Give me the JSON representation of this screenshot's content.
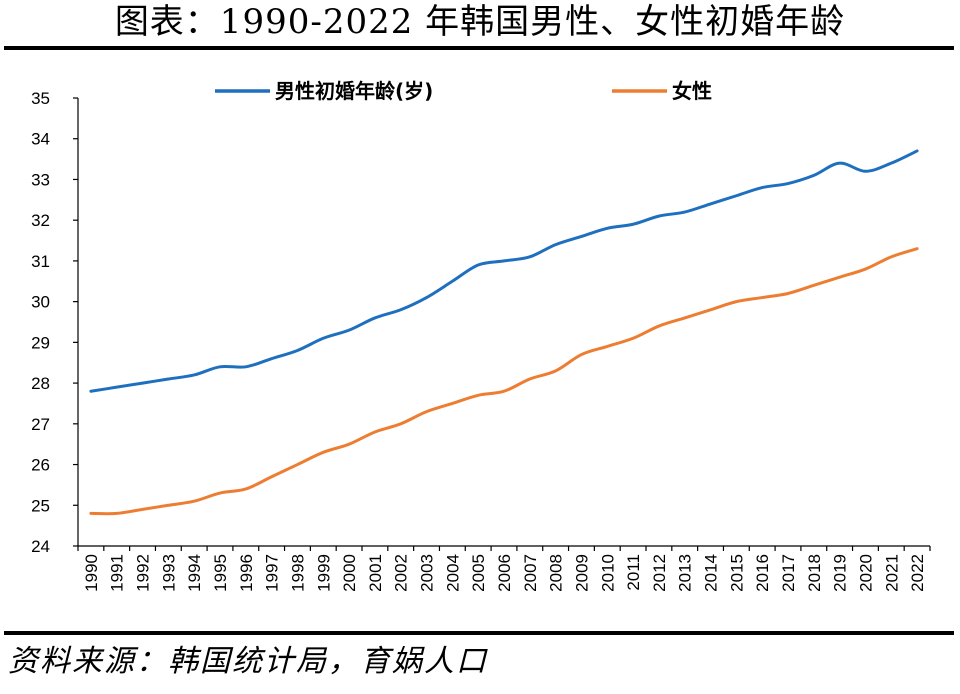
{
  "title": "图表：1990-2022 年韩国男性、女性初婚年龄",
  "source": "资料来源：韩国统计局，育娲人口",
  "chart_data": {
    "type": "line",
    "x": [
      1990,
      1991,
      1992,
      1993,
      1994,
      1995,
      1996,
      1997,
      1998,
      1999,
      2000,
      2001,
      2002,
      2003,
      2004,
      2005,
      2006,
      2007,
      2008,
      2009,
      2010,
      2011,
      2012,
      2013,
      2014,
      2015,
      2016,
      2017,
      2018,
      2019,
      2020,
      2021,
      2022
    ],
    "x_tick_labels": [
      "1990",
      "1991",
      "1992",
      "1993",
      "1994",
      "1995",
      "1996",
      "1997",
      "1998",
      "1999",
      "2000",
      "2001",
      "2002",
      "2003",
      "2004",
      "2005",
      "2006",
      "2007",
      "2008",
      "2009",
      "2010",
      "2011",
      "2012",
      "2013",
      "2014",
      "2015",
      "2016",
      "2017",
      "2018",
      "2019",
      "2020",
      "2021",
      "2022"
    ],
    "y_tick_labels": [
      "24",
      "25",
      "26",
      "27",
      "28",
      "29",
      "30",
      "31",
      "32",
      "33",
      "34",
      "35"
    ],
    "ylim": [
      24,
      35
    ],
    "grid": false,
    "legend_position": "top",
    "series": [
      {
        "name": "男性初婚年龄(岁)",
        "color": "#1f6fbf",
        "values": [
          27.8,
          27.9,
          28.0,
          28.1,
          28.2,
          28.4,
          28.4,
          28.6,
          28.8,
          29.1,
          29.3,
          29.6,
          29.8,
          30.1,
          30.5,
          30.9,
          31.0,
          31.1,
          31.4,
          31.6,
          31.8,
          31.9,
          32.1,
          32.2,
          32.4,
          32.6,
          32.8,
          32.9,
          33.1,
          33.4,
          33.2,
          33.4,
          33.7
        ]
      },
      {
        "name": "女性",
        "color": "#ed7d31",
        "values": [
          24.8,
          24.8,
          24.9,
          25.0,
          25.1,
          25.3,
          25.4,
          25.7,
          26.0,
          26.3,
          26.5,
          26.8,
          27.0,
          27.3,
          27.5,
          27.7,
          27.8,
          28.1,
          28.3,
          28.7,
          28.9,
          29.1,
          29.4,
          29.6,
          29.8,
          30.0,
          30.1,
          30.2,
          30.4,
          30.6,
          30.8,
          31.1,
          31.3
        ]
      }
    ]
  }
}
